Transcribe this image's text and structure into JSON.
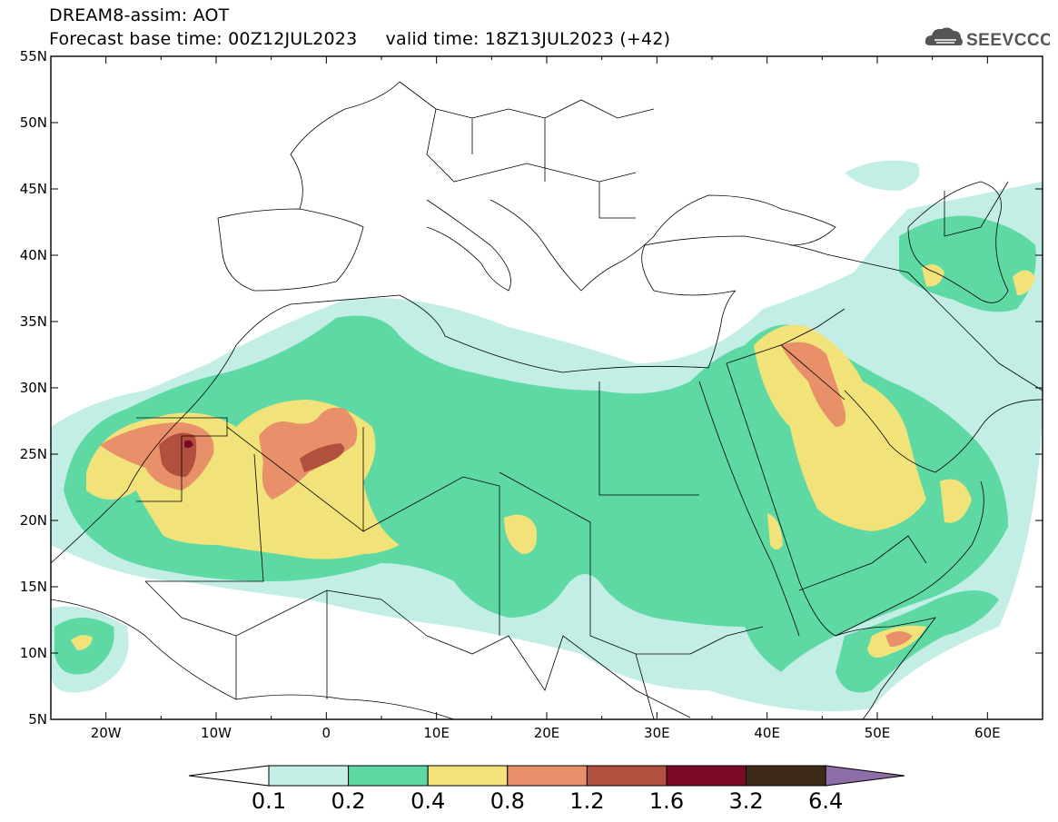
{
  "header": {
    "line1": "DREAM8-assim: AOT",
    "line2": "Forecast base time: 00Z12JUL2023     valid time: 18Z13JUL2023 (+42)"
  },
  "logo": {
    "text": "SEEVCCC",
    "icon": "cloud-icon"
  },
  "map": {
    "projection": "lat-lon",
    "lon_range": [
      -25,
      65
    ],
    "lat_range": [
      5,
      55
    ],
    "lon_ticks": [
      "20W",
      "10W",
      "0",
      "10E",
      "20E",
      "30E",
      "40E",
      "50E",
      "60E"
    ],
    "lat_ticks": [
      "55N",
      "50N",
      "45N",
      "40N",
      "35N",
      "30N",
      "25N",
      "20N",
      "15N",
      "10N",
      "5N"
    ]
  },
  "colorbar": {
    "labels": [
      "0.1",
      "0.2",
      "0.4",
      "0.8",
      "1.2",
      "1.6",
      "3.2",
      "6.4"
    ],
    "colors": [
      "#ffffff",
      "#c2eee6",
      "#5ed9a4",
      "#f2e27a",
      "#e8906a",
      "#b2503f",
      "#7b0a26",
      "#3d2a17",
      "#8c6fa6"
    ]
  }
}
